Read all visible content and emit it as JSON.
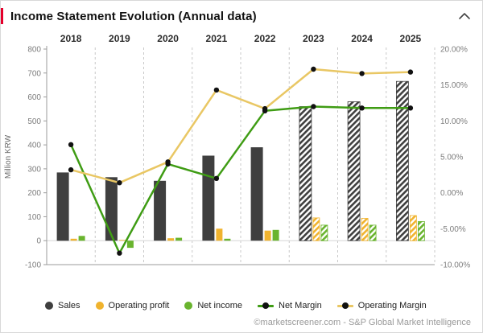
{
  "header": {
    "title": "Income Statement Evolution (Annual data)",
    "accent_color": "#e4002b",
    "collapse_icon": "chevron-up"
  },
  "chart_data": {
    "type": "bar",
    "subtype": "combo-bar-line",
    "categories": [
      "2018",
      "2019",
      "2020",
      "2021",
      "2022",
      "2023",
      "2024",
      "2025"
    ],
    "estimate_categories": [
      "2023",
      "2024",
      "2025"
    ],
    "bar_series": [
      {
        "name": "Sales",
        "color": "#3f3f3f",
        "values": [
          285,
          265,
          250,
          355,
          390,
          560,
          580,
          665
        ]
      },
      {
        "name": "Operating profit",
        "color": "#f0b32e",
        "values": [
          8,
          3,
          10,
          50,
          42,
          95,
          93,
          105
        ]
      },
      {
        "name": "Net income",
        "color": "#69b42e",
        "values": [
          20,
          -30,
          12,
          8,
          45,
          65,
          65,
          80
        ]
      }
    ],
    "line_series": [
      {
        "name": "Net Margin",
        "color": "#3f9c14",
        "axis": "right",
        "values": [
          6.7,
          -8.4,
          4.0,
          2.0,
          11.4,
          12.0,
          11.8,
          11.8
        ]
      },
      {
        "name": "Operating Margin",
        "color": "#e9c764",
        "axis": "right",
        "values": [
          3.2,
          1.4,
          4.3,
          14.3,
          11.7,
          17.2,
          16.6,
          16.8
        ]
      }
    ],
    "left_axis": {
      "label": "Million KRW",
      "min": -100,
      "max": 800,
      "step": 100
    },
    "right_axis": {
      "min": -10,
      "max": 20,
      "step": 5,
      "format": "percent"
    },
    "marker_color": "#111111",
    "grid": "dashed-vertical",
    "legend_position": "bottom"
  },
  "footer": {
    "credit": "©marketscreener.com - S&P Global Market Intelligence"
  }
}
